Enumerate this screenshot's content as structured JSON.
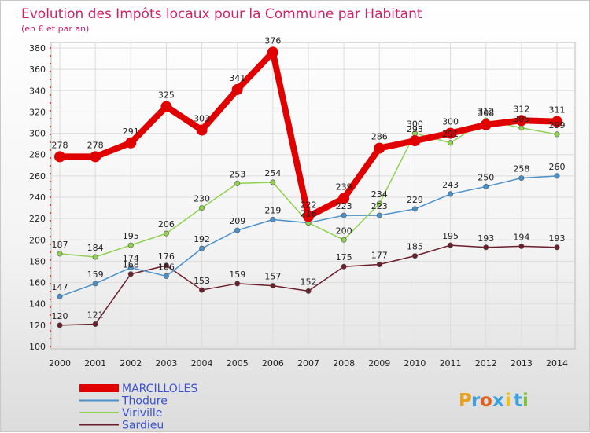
{
  "chart_data": {
    "type": "line",
    "title": "Evolution des Impôts locaux pour la Commune par Habitant",
    "subtitle": "(en € et par an)",
    "xlabel": "",
    "ylabel": "",
    "categories": [
      "2000",
      "2001",
      "2002",
      "2003",
      "2004",
      "2005",
      "2006",
      "2007",
      "2008",
      "2009",
      "2010",
      "2011",
      "2012",
      "2013",
      "2014"
    ],
    "ylim": [
      100,
      380
    ],
    "yticks": [
      100,
      120,
      140,
      160,
      180,
      200,
      220,
      240,
      260,
      280,
      300,
      320,
      340,
      360,
      380
    ],
    "grid": true,
    "legend_position": "bottom-left",
    "series": [
      {
        "name": "MARCILLOLES",
        "color": "#e00000",
        "values": [
          278,
          278,
          291,
          325,
          303,
          341,
          376,
          222,
          239,
          286,
          293,
          300,
          308,
          312,
          311
        ]
      },
      {
        "name": "Thodure",
        "color": "#4a90c8",
        "values": [
          147,
          159,
          174,
          166,
          192,
          209,
          219,
          216,
          223,
          223,
          229,
          243,
          250,
          258,
          260
        ]
      },
      {
        "name": "Viriville",
        "color": "#8fd14f",
        "values": [
          187,
          184,
          195,
          206,
          230,
          253,
          254,
          216,
          200,
          234,
          300,
          291,
          312,
          305,
          299
        ]
      },
      {
        "name": "Sardieu",
        "color": "#6b1f2a",
        "values": [
          120,
          121,
          168,
          176,
          153,
          159,
          157,
          152,
          175,
          177,
          185,
          195,
          193,
          194,
          193
        ]
      }
    ],
    "data_labels": [
      {
        "series": "MARCILLOLES",
        "labels": [
          "278",
          "278",
          "291",
          "325",
          "303",
          "341",
          "376",
          "222",
          "239",
          "286",
          "293",
          "300",
          "308",
          "312",
          "311"
        ]
      },
      {
        "series": "Thodure",
        "labels": [
          "147",
          "159",
          "174",
          "166",
          "192",
          "209",
          "219",
          "216",
          "223",
          "223",
          "229",
          "243",
          "250",
          "258",
          "260"
        ]
      },
      {
        "series": "Viriville",
        "labels": [
          "187",
          "184",
          "195",
          "206",
          "230",
          "253",
          "254",
          "216",
          "200",
          "234",
          "300",
          "291",
          "312",
          "305",
          "299"
        ]
      },
      {
        "series": "Sardieu",
        "labels": [
          "120",
          "121",
          "168",
          "176",
          "153",
          "159",
          "157",
          "152",
          "175",
          "177",
          "185",
          "195",
          "193",
          "194",
          "193"
        ]
      }
    ]
  },
  "brand": {
    "text": "Proxiti",
    "letters": [
      "P",
      "r",
      "o",
      "x",
      "i",
      "t",
      "i"
    ],
    "colors": [
      "#e8a020",
      "#3aa0e0",
      "#e06020",
      "#3aa0e0",
      "#e8c020",
      "#3aa0e0",
      "#80c040"
    ]
  }
}
